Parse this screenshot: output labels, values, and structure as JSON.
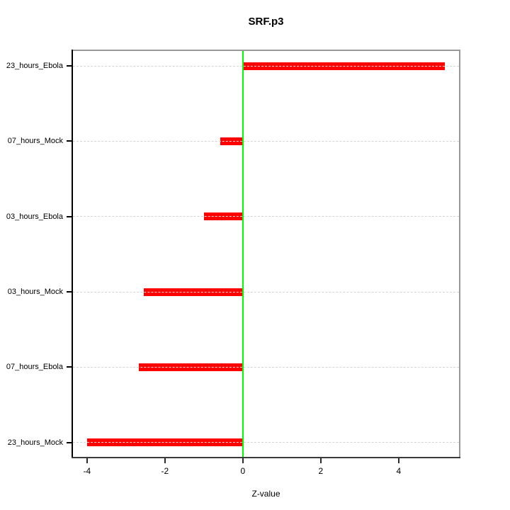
{
  "chart_data": {
    "type": "bar",
    "orientation": "horizontal",
    "title": "SRF.p3",
    "xlabel": "Z-value",
    "categories_top_to_bottom": [
      "23_hours_Ebola",
      "07_hours_Mock",
      "03_hours_Ebola",
      "03_hours_Mock",
      "07_hours_Ebola",
      "23_hours_Mock"
    ],
    "values": [
      5.18,
      -0.58,
      -1.0,
      -2.55,
      -2.67,
      -4.0
    ],
    "xticks": [
      -4,
      -2,
      0,
      2,
      4
    ],
    "xlim": [
      -4.36,
      5.55
    ],
    "zero_line_at": 0,
    "grid": "horizontal dashed line per category, drawn over bars",
    "legend": "none",
    "colors": {
      "bar": "#ff0000",
      "zero_line": "#00ff00",
      "grid": "#d4d4d4",
      "box": "#989898",
      "axis": "#000000",
      "text": "#000000",
      "background": "#ffffff"
    }
  }
}
